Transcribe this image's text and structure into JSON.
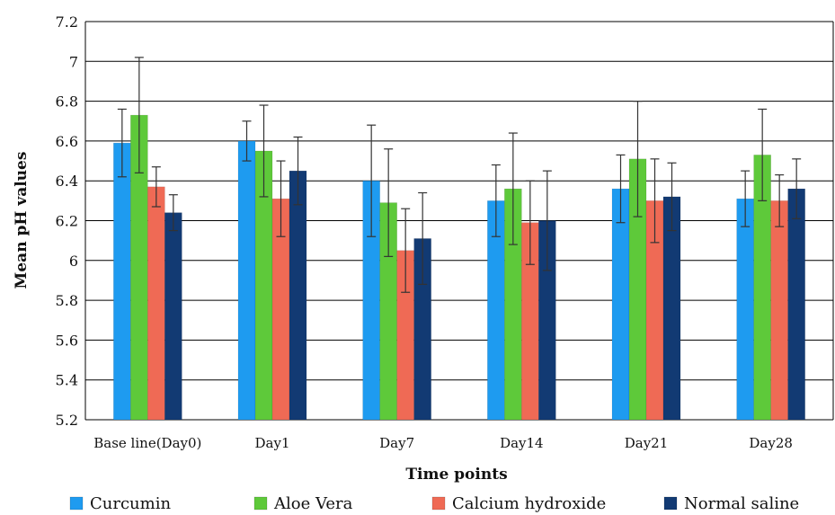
{
  "chart_data": {
    "type": "bar",
    "xlabel": "Time points",
    "ylabel": "Mean pH values",
    "ylim": [
      5.2,
      7.2
    ],
    "yticks": [
      "5.2",
      "5.4",
      "5.6",
      "5.8",
      "6",
      "6.2",
      "6.4",
      "6.6",
      "6.8",
      "7",
      "7.2"
    ],
    "grid": "horizontal",
    "legend_position": "bottom",
    "categories": [
      "Base line(Day0)",
      "Day1",
      "Day7",
      "Day14",
      "Day21",
      "Day28"
    ],
    "series": [
      {
        "name": "Curcumin",
        "color": "#1e9bf0",
        "values": [
          6.59,
          6.6,
          6.4,
          6.3,
          6.36,
          6.31
        ],
        "errors": [
          0.17,
          0.1,
          0.28,
          0.18,
          0.17,
          0.14
        ]
      },
      {
        "name": "Aloe Vera",
        "color": "#5ec93a",
        "values": [
          6.73,
          6.55,
          6.29,
          6.36,
          6.51,
          6.53
        ],
        "errors": [
          0.29,
          0.23,
          0.27,
          0.28,
          0.29,
          0.23
        ]
      },
      {
        "name": "Calcium hydroxide",
        "color": "#ef6a55",
        "values": [
          6.37,
          6.31,
          6.05,
          6.19,
          6.3,
          6.3
        ],
        "errors": [
          0.1,
          0.19,
          0.21,
          0.21,
          0.21,
          0.13
        ]
      },
      {
        "name": "Normal saline",
        "color": "#123a73",
        "values": [
          6.24,
          6.45,
          6.11,
          6.2,
          6.32,
          6.36
        ],
        "errors": [
          0.09,
          0.17,
          0.23,
          0.25,
          0.17,
          0.15
        ]
      }
    ]
  }
}
